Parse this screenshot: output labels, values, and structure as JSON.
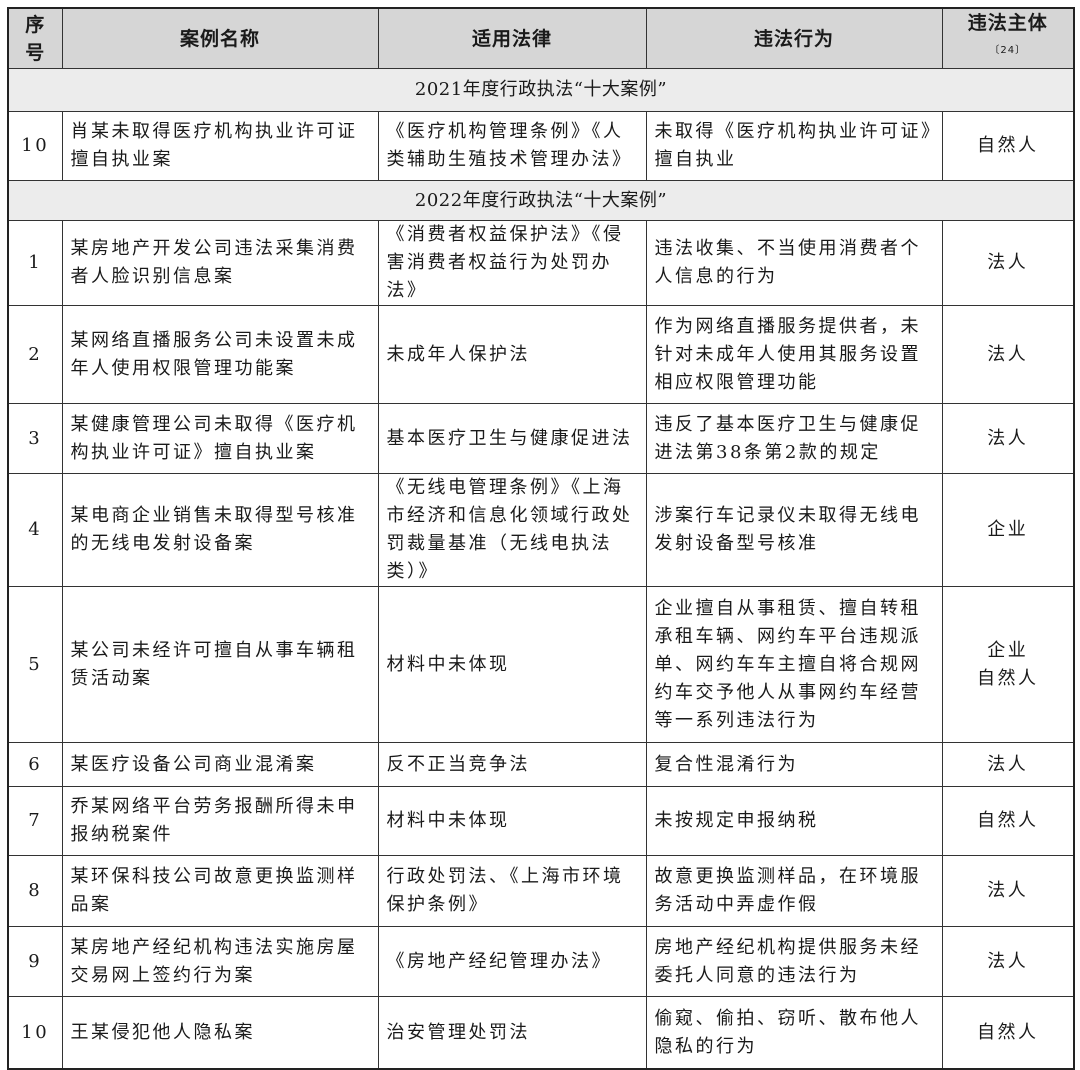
{
  "header": {
    "columns": [
      "序号",
      "案例名称",
      "适用法律",
      "违法行为",
      "违法主体"
    ],
    "footnote": "〔24〕"
  },
  "sections": [
    {
      "title": "2021年度行政执法“十大案例”",
      "rows": [
        [
          10,
          "肖某未取得医疗机构执业许可证擅自执业案",
          "《医疗机构管理条例》《人类辅助生殖技术管理办法》",
          "未取得《医疗机构执业许可证》擅自执业",
          "自然人"
        ]
      ]
    },
    {
      "title": "2022年度行政执法“十大案例”",
      "rows": [
        [
          1,
          "某房地产开发公司违法采集消费者人脸识别信息案",
          "《消费者权益保护法》《侵害消费者权益行为处罚办法》",
          "违法收集、不当使用消费者个人信息的行为",
          "法人"
        ],
        [
          2,
          "某网络直播服务公司未设置未成年人使用权限管理功能案",
          "未成年人保护法",
          "作为网络直播服务提供者，未针对未成年人使用其服务设置相应权限管理功能",
          "法人"
        ],
        [
          3,
          "某健康管理公司未取得《医疗机构执业许可证》擅自执业案",
          "基本医疗卫生与健康促进法",
          "违反了基本医疗卫生与健康促进法第38条第2款的规定",
          "法人"
        ],
        [
          4,
          "某电商企业销售未取得型号核准的无线电发射设备案",
          "《无线电管理条例》《上海市经济和信息化领域行政处罚裁量基准（无线电执法类）》",
          "涉案行车记录仪未取得无线电发射设备型号核准",
          "企业"
        ],
        [
          5,
          "某公司未经许可擅自从事车辆租赁活动案",
          "材料中未体现",
          "企业擅自从事租赁、擅自转租承租车辆、网约车平台违规派单、网约车车主擅自将合规网约车交予他人从事网约车经营等一系列违法行为",
          "企业\n自然人"
        ],
        [
          6,
          "某医疗设备公司商业混淆案",
          "反不正当竞争法",
          "复合性混淆行为",
          "法人"
        ],
        [
          7,
          "乔某网络平台劳务报酬所得未申报纳税案件",
          "材料中未体现",
          "未按规定申报纳税",
          "自然人"
        ],
        [
          8,
          "某环保科技公司故意更换监测样品案",
          "行政处罚法、《上海市环境保护条例》",
          "故意更换监测样品，在环境服务活动中弄虚作假",
          "法人"
        ],
        [
          9,
          "某房地产经纪机构违法实施房屋交易网上签约行为案",
          "《房地产经纪管理办法》",
          "房地产经纪机构提供服务未经委托人同意的违法行为",
          "法人"
        ],
        [
          10,
          "王某侵犯他人隐私案",
          "治安管理处罚法",
          "偷窥、偷拍、窃听、散布他人隐私的行为",
          "自然人"
        ]
      ]
    }
  ]
}
